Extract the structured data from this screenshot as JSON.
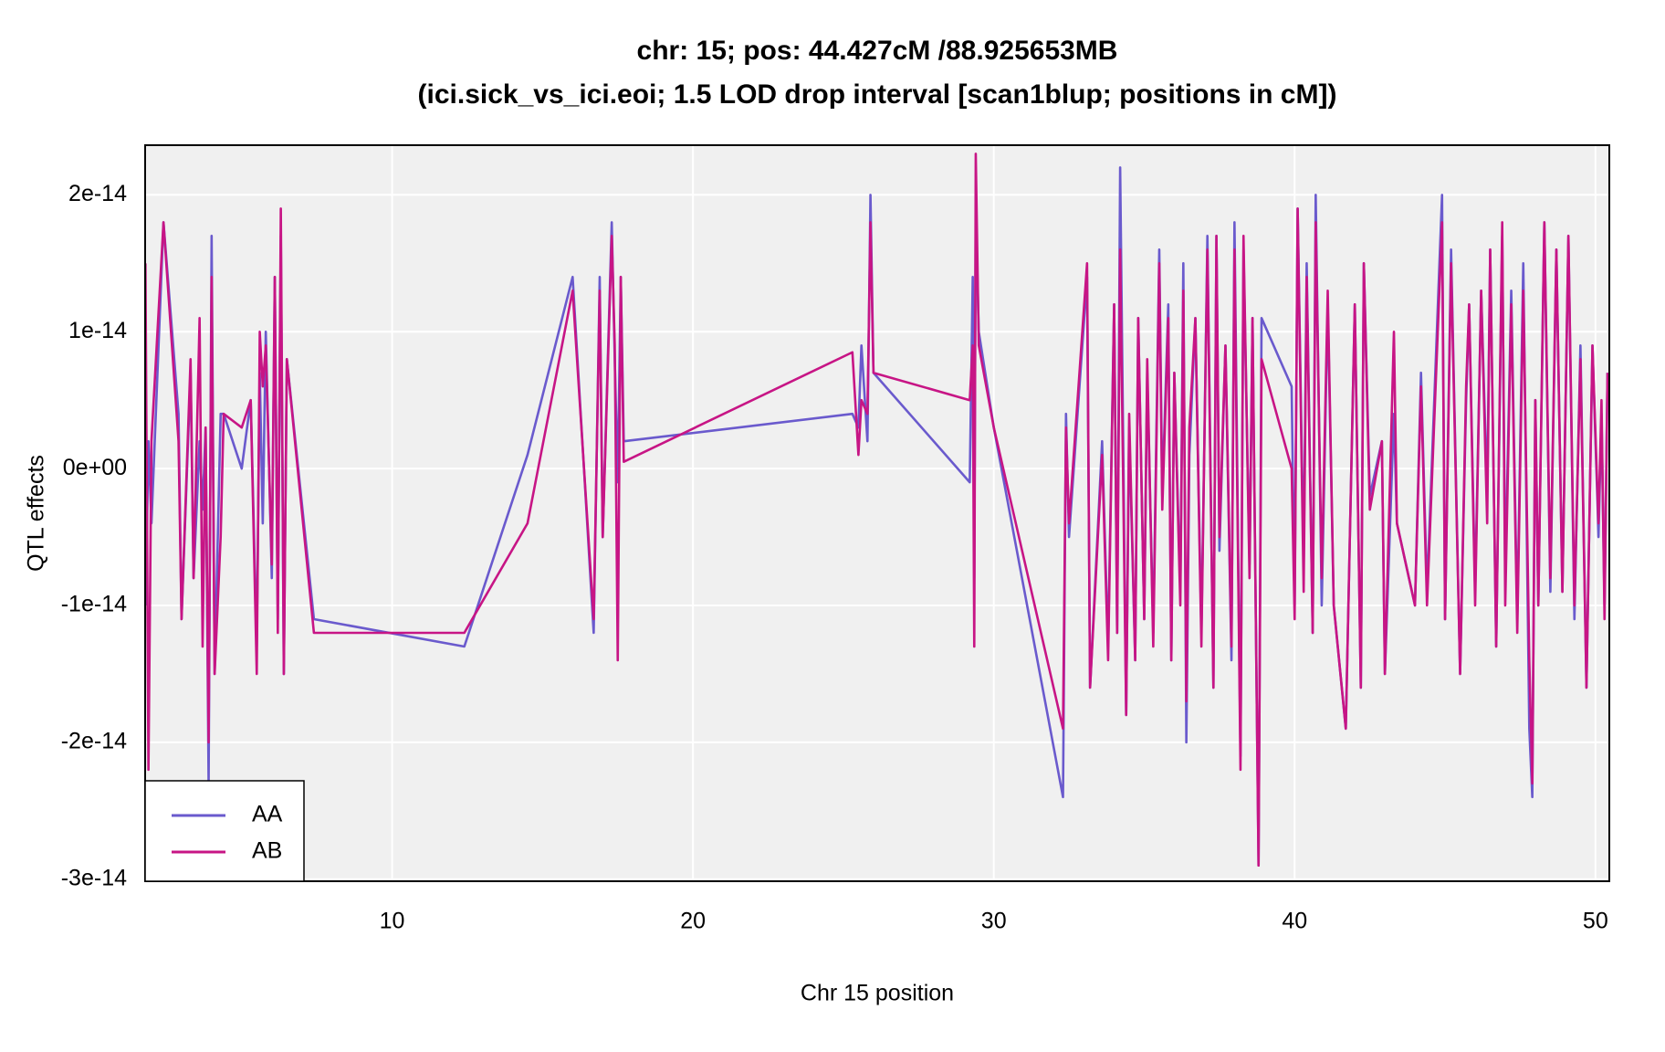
{
  "chart_data": {
    "type": "line",
    "title": "chr: 15; pos: 44.427cM /88.925653MB",
    "subtitle": "(ici.sick_vs_ici.eoi; 1.5 LOD drop interval [scan1blup; positions in cM])",
    "x_label": "Chr 15 position",
    "y_label": "QTL effects",
    "xlim": [
      1.79,
      50.46
    ],
    "ylim": [
      -3.015e-14,
      2.363e-14
    ],
    "xticks": [
      10,
      20,
      30,
      40,
      50
    ],
    "yticks": [
      {
        "value": 2e-14,
        "label": "2e-14"
      },
      {
        "value": 1e-14,
        "label": "1e-14"
      },
      {
        "value": 0,
        "label": "0e+00"
      },
      {
        "value": -1e-14,
        "label": "-1e-14"
      },
      {
        "value": -2e-14,
        "label": "-2e-14"
      },
      {
        "value": -3e-14,
        "label": "-3e-14"
      }
    ],
    "grid": true,
    "legend": "bottomleft",
    "x": [
      1.8,
      1.9,
      2.0,
      2.4,
      2.9,
      3.0,
      3.3,
      3.4,
      3.6,
      3.7,
      3.8,
      3.9,
      4.0,
      4.1,
      4.3,
      4.4,
      5.0,
      5.3,
      5.5,
      5.6,
      5.7,
      5.8,
      6.0,
      6.1,
      6.2,
      6.3,
      6.4,
      6.5,
      7.4,
      12.4,
      14.5,
      16.0,
      16.7,
      16.9,
      17.0,
      17.3,
      17.4,
      17.5,
      17.6,
      17.7,
      25.3,
      25.5,
      25.6,
      25.8,
      25.9,
      26.0,
      29.2,
      29.3,
      29.35,
      29.4,
      29.5,
      30.0,
      32.3,
      32.4,
      32.5,
      33.1,
      33.2,
      33.6,
      33.8,
      34.0,
      34.1,
      34.2,
      34.4,
      34.5,
      34.7,
      34.8,
      35.0,
      35.1,
      35.3,
      35.5,
      35.6,
      35.8,
      35.9,
      36.0,
      36.2,
      36.3,
      36.4,
      36.5,
      36.7,
      36.9,
      37.0,
      37.1,
      37.3,
      37.4,
      37.5,
      37.7,
      37.9,
      38.0,
      38.2,
      38.3,
      38.5,
      38.6,
      38.8,
      38.9,
      39.9,
      40.0,
      40.1,
      40.3,
      40.4,
      40.6,
      40.7,
      40.9,
      41.1,
      41.3,
      41.7,
      42.0,
      42.2,
      42.3,
      42.5,
      42.9,
      43.0,
      43.3,
      43.4,
      44.0,
      44.2,
      44.4,
      44.9,
      45.0,
      45.2,
      45.5,
      45.7,
      45.8,
      46.0,
      46.2,
      46.4,
      46.5,
      46.7,
      46.9,
      47.0,
      47.2,
      47.4,
      47.6,
      47.8,
      47.9,
      48.0,
      48.1,
      48.3,
      48.5,
      48.7,
      48.9,
      49.1,
      49.3,
      49.5,
      49.7,
      49.9,
      50.1,
      50.2,
      50.3,
      50.4
    ],
    "series": [
      {
        "name": "AA",
        "color": "#6a5acd",
        "values": [
          -1e-14,
          2e-15,
          -4e-15,
          1.8e-14,
          4e-15,
          -1.1e-14,
          7e-15,
          -8e-15,
          2e-15,
          -3e-15,
          3e-15,
          -2.3e-14,
          1.7e-14,
          -1.5e-14,
          4e-15,
          4e-15,
          0,
          5e-15,
          -1.3e-14,
          7e-15,
          -4e-15,
          1e-14,
          -8e-15,
          1.4e-14,
          -1.1e-14,
          1.7e-14,
          -1.5e-14,
          8e-15,
          -1.1e-14,
          -1.3e-14,
          1e-15,
          1.4e-14,
          -1.2e-14,
          1.4e-14,
          -5e-15,
          1.8e-14,
          8e-15,
          -1e-15,
          1.4e-14,
          2e-15,
          4e-15,
          3e-15,
          9e-15,
          2e-15,
          2e-14,
          7e-15,
          -1e-15,
          1.4e-14,
          -8e-15,
          1.9e-14,
          1e-14,
          3e-15,
          -2.4e-14,
          4e-15,
          -5e-15,
          1.4e-14,
          -1.6e-14,
          2e-15,
          -1.3e-14,
          1.2e-14,
          -1.2e-14,
          2.2e-14,
          -1.8e-14,
          3e-15,
          -1.4e-14,
          1.1e-14,
          -1.1e-14,
          7e-15,
          -1.2e-14,
          1.6e-14,
          -2e-15,
          1.2e-14,
          -1.4e-14,
          7e-15,
          -9e-15,
          1.5e-14,
          -2e-14,
          1e-15,
          1.1e-14,
          -1.2e-14,
          2e-15,
          1.7e-14,
          -1.6e-14,
          1.7e-14,
          -6e-15,
          9e-15,
          -1.4e-14,
          1.8e-14,
          -2.1e-14,
          1.6e-14,
          -7e-15,
          1.1e-14,
          -2.9e-14,
          1.1e-14,
          6e-15,
          -1e-14,
          1.9e-14,
          -7e-15,
          1.5e-14,
          -1.2e-14,
          2e-14,
          -1e-14,
          1.2e-14,
          -1e-14,
          -1.9e-14,
          1.2e-14,
          -1.6e-14,
          1.5e-14,
          -2e-15,
          2e-15,
          -1.5e-14,
          4e-15,
          -4e-15,
          -1e-14,
          7e-15,
          -9e-15,
          2e-14,
          -1.1e-14,
          1.6e-14,
          -1.5e-14,
          5e-15,
          1.2e-14,
          -9e-15,
          1.3e-14,
          -2e-15,
          1.6e-14,
          -1.3e-14,
          1.7e-14,
          -8e-15,
          1.3e-14,
          -1.1e-14,
          1.5e-14,
          -1.9e-14,
          -2.4e-14,
          5e-15,
          -1e-14,
          1.8e-14,
          -9e-15,
          1.6e-14,
          -9e-15,
          1.7e-14,
          -1.1e-14,
          9e-15,
          -1.6e-14,
          9e-15,
          -5e-15,
          4e-15,
          -1e-14,
          7e-15
        ]
      },
      {
        "name": "AB",
        "color": "#c71585",
        "values": [
          1.5e-14,
          -2.2e-14,
          2e-15,
          1.8e-14,
          2e-15,
          -1.1e-14,
          8e-15,
          -8e-15,
          1.1e-14,
          -1.3e-14,
          3e-15,
          -2e-14,
          1.4e-14,
          -1.5e-14,
          -5e-15,
          4e-15,
          3e-15,
          5e-15,
          -1.5e-14,
          1e-14,
          6e-15,
          9e-15,
          -7e-15,
          1.4e-14,
          -1.2e-14,
          1.9e-14,
          -1.5e-14,
          8e-15,
          -1.2e-14,
          -1.2e-14,
          -4e-15,
          1.3e-14,
          -1.1e-14,
          1.3e-14,
          -5e-15,
          1.7e-14,
          9e-15,
          -1.4e-14,
          1.4e-14,
          5e-16,
          8.5e-15,
          1e-15,
          5e-15,
          4e-15,
          1.8e-14,
          7e-15,
          5e-15,
          9e-15,
          -1.3e-14,
          2.3e-14,
          9e-15,
          3e-15,
          -1.9e-14,
          3e-15,
          -4e-15,
          1.5e-14,
          -1.6e-14,
          1e-15,
          -1.4e-14,
          1.2e-14,
          -1.2e-14,
          1.6e-14,
          -1.8e-14,
          4e-15,
          -1.4e-14,
          1.1e-14,
          -1.1e-14,
          8e-15,
          -1.3e-14,
          1.5e-14,
          -3e-15,
          1.1e-14,
          -1.4e-14,
          7e-15,
          -1e-14,
          1.3e-14,
          -1.7e-14,
          3e-15,
          1.1e-14,
          -1.3e-14,
          2e-15,
          1.6e-14,
          -1.6e-14,
          1.7e-14,
          -5e-15,
          9e-15,
          -1.3e-14,
          1.6e-14,
          -2.2e-14,
          1.7e-14,
          -8e-15,
          1.1e-14,
          -2.9e-14,
          8e-15,
          0,
          -1.1e-14,
          1.9e-14,
          -9e-15,
          1.4e-14,
          -1.2e-14,
          1.8e-14,
          -8e-15,
          1.3e-14,
          -1e-14,
          -1.9e-14,
          1.2e-14,
          -1.6e-14,
          1.5e-14,
          -3e-15,
          2e-15,
          -1.5e-14,
          1e-14,
          -4e-15,
          -1e-14,
          6e-15,
          -1e-14,
          1.8e-14,
          -1.1e-14,
          1.5e-14,
          -1.5e-14,
          6e-15,
          1.2e-14,
          -1e-14,
          1.3e-14,
          -4e-15,
          1.6e-14,
          -1.3e-14,
          1.8e-14,
          -1e-14,
          1.2e-14,
          -1.2e-14,
          1.3e-14,
          -1.4e-14,
          -2.3e-14,
          5e-15,
          -1e-14,
          1.8e-14,
          -8e-15,
          1.6e-14,
          -9e-15,
          1.7e-14,
          -1e-14,
          8e-15,
          -1.6e-14,
          9e-15,
          -4e-15,
          5e-15,
          -1.1e-14,
          7e-15
        ]
      }
    ]
  }
}
